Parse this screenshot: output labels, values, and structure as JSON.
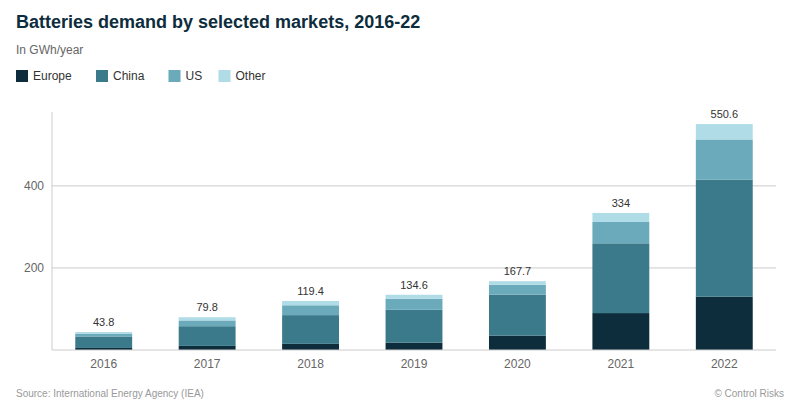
{
  "chart_data": {
    "type": "bar",
    "stacked": true,
    "title": "Batteries demand by selected markets, 2016-22",
    "subtitle": "In GWh/year",
    "categories": [
      "2016",
      "2017",
      "2018",
      "2019",
      "2020",
      "2021",
      "2022"
    ],
    "series": [
      {
        "name": "Europe",
        "color": "#0d2d3d",
        "values": [
          5.0,
          10.0,
          15.0,
          18.0,
          35.0,
          90.0,
          130.0
        ]
      },
      {
        "name": "China",
        "color": "#3a7a8a",
        "values": [
          28.0,
          48.0,
          70.0,
          80.0,
          100.0,
          170.0,
          285.0
        ]
      },
      {
        "name": "US",
        "color": "#6aaaba",
        "values": [
          7.0,
          14.0,
          24.0,
          27.0,
          24.0,
          52.0,
          98.0
        ]
      },
      {
        "name": "Other",
        "color": "#b0dce8",
        "values": [
          3.8,
          7.8,
          10.4,
          9.6,
          8.7,
          22.0,
          37.6
        ]
      }
    ],
    "totals": [
      43.8,
      79.8,
      119.4,
      134.6,
      167.7,
      334,
      550.6
    ],
    "annotations": [
      "Source: International Energy Agency (IEA)",
      "© Control Risks"
    ],
    "ylim": [
      0,
      580
    ],
    "yticks": [
      200,
      400
    ],
    "grid": true,
    "legend": "top"
  }
}
